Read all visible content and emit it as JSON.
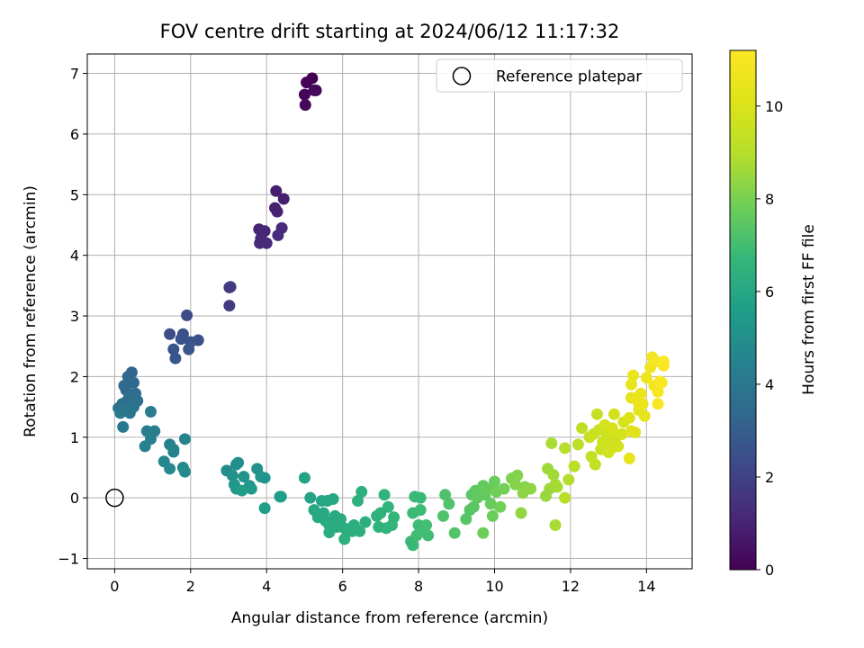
{
  "chart_data": {
    "type": "scatter",
    "title": "FOV centre drift starting at 2024/06/12 11:17:32",
    "xlabel": "Angular distance from reference (arcmin)",
    "ylabel": "Rotation from reference (arcmin)",
    "xlim": [
      -0.72,
      15.2
    ],
    "ylim": [
      -1.17,
      7.32
    ],
    "xticks": [
      0,
      2,
      4,
      6,
      8,
      10,
      12,
      14
    ],
    "yticks": [
      -1,
      0,
      1,
      2,
      3,
      4,
      5,
      6,
      7
    ],
    "grid": true,
    "legend": {
      "placement": "top-right",
      "entries": [
        "Reference platepar"
      ]
    },
    "reference": {
      "name": "Reference platepar",
      "x": 0,
      "y": 0
    },
    "colorbar": {
      "label": "Hours from first FF file",
      "colormap": "viridis",
      "range": [
        0,
        11.2
      ],
      "ticks": [
        0,
        2,
        4,
        6,
        8,
        10
      ]
    },
    "points": [
      [
        5.2,
        6.92,
        0.0
      ],
      [
        5.05,
        6.85,
        0.05
      ],
      [
        5.0,
        6.65,
        0.1
      ],
      [
        5.3,
        6.72,
        0.12
      ],
      [
        5.02,
        6.48,
        0.18
      ],
      [
        5.25,
        6.72,
        0.22
      ],
      [
        4.25,
        5.06,
        0.8
      ],
      [
        4.45,
        4.93,
        0.85
      ],
      [
        4.22,
        4.78,
        0.9
      ],
      [
        4.28,
        4.72,
        0.95
      ],
      [
        3.8,
        4.43,
        1.0
      ],
      [
        3.95,
        4.4,
        1.05
      ],
      [
        3.85,
        4.28,
        1.1
      ],
      [
        3.82,
        4.2,
        1.15
      ],
      [
        4.0,
        4.2,
        1.2
      ],
      [
        4.4,
        4.45,
        1.25
      ],
      [
        4.3,
        4.33,
        1.3
      ],
      [
        3.05,
        3.48,
        1.7
      ],
      [
        3.02,
        3.47,
        1.75
      ],
      [
        3.02,
        3.17,
        1.8
      ],
      [
        1.9,
        3.01,
        2.3
      ],
      [
        1.45,
        2.7,
        2.4
      ],
      [
        1.8,
        2.7,
        2.45
      ],
      [
        2.2,
        2.6,
        2.5
      ],
      [
        1.75,
        2.62,
        2.55
      ],
      [
        2.0,
        2.57,
        2.6
      ],
      [
        1.55,
        2.45,
        2.65
      ],
      [
        1.95,
        2.45,
        2.7
      ],
      [
        1.6,
        2.3,
        2.75
      ],
      [
        0.45,
        2.07,
        3.3
      ],
      [
        0.35,
        2.0,
        3.35
      ],
      [
        0.5,
        1.9,
        3.4
      ],
      [
        0.25,
        1.85,
        3.45
      ],
      [
        0.3,
        1.78,
        3.5
      ],
      [
        0.55,
        1.72,
        3.55
      ],
      [
        0.45,
        1.68,
        3.6
      ],
      [
        0.35,
        1.62,
        3.65
      ],
      [
        0.6,
        1.6,
        3.7
      ],
      [
        0.2,
        1.55,
        3.75
      ],
      [
        0.1,
        1.48,
        3.8
      ],
      [
        0.5,
        1.5,
        3.85
      ],
      [
        0.3,
        1.45,
        3.9
      ],
      [
        0.4,
        1.4,
        3.95
      ],
      [
        0.15,
        1.4,
        4.0
      ],
      [
        0.22,
        1.17,
        4.05
      ],
      [
        0.95,
        1.42,
        4.2
      ],
      [
        0.85,
        1.1,
        4.25
      ],
      [
        1.05,
        1.1,
        4.3
      ],
      [
        0.95,
        0.97,
        4.35
      ],
      [
        0.8,
        0.85,
        4.4
      ],
      [
        1.45,
        0.88,
        4.45
      ],
      [
        1.85,
        0.97,
        4.5
      ],
      [
        1.55,
        0.8,
        4.55
      ],
      [
        1.55,
        0.76,
        4.6
      ],
      [
        1.3,
        0.6,
        4.65
      ],
      [
        1.45,
        0.48,
        4.7
      ],
      [
        1.8,
        0.5,
        4.75
      ],
      [
        1.85,
        0.43,
        4.8
      ],
      [
        2.95,
        0.45,
        4.9
      ],
      [
        3.25,
        0.58,
        4.95
      ],
      [
        3.2,
        0.55,
        5.0
      ],
      [
        3.75,
        0.48,
        5.05
      ],
      [
        3.1,
        0.37,
        5.1
      ],
      [
        3.4,
        0.35,
        5.15
      ],
      [
        3.85,
        0.35,
        5.2
      ],
      [
        3.95,
        0.33,
        5.25
      ],
      [
        3.15,
        0.22,
        5.3
      ],
      [
        3.2,
        0.15,
        5.35
      ],
      [
        3.55,
        0.2,
        5.4
      ],
      [
        3.6,
        0.15,
        5.45
      ],
      [
        3.35,
        0.12,
        5.5
      ],
      [
        4.35,
        0.02,
        5.55
      ],
      [
        4.38,
        0.02,
        5.6
      ],
      [
        3.95,
        -0.17,
        5.65
      ],
      [
        5.0,
        0.33,
        5.8
      ],
      [
        5.15,
        0.0,
        5.85
      ],
      [
        5.45,
        -0.05,
        5.9
      ],
      [
        5.6,
        -0.05,
        5.95
      ],
      [
        5.75,
        -0.02,
        6.0
      ],
      [
        5.25,
        -0.2,
        6.02
      ],
      [
        5.5,
        -0.25,
        6.05
      ],
      [
        5.35,
        -0.32,
        6.08
      ],
      [
        5.55,
        -0.38,
        6.1
      ],
      [
        5.8,
        -0.3,
        6.12
      ],
      [
        5.95,
        -0.35,
        6.15
      ],
      [
        5.65,
        -0.45,
        6.18
      ],
      [
        5.85,
        -0.48,
        6.2
      ],
      [
        6.05,
        -0.5,
        6.22
      ],
      [
        5.65,
        -0.57,
        6.25
      ],
      [
        6.3,
        -0.45,
        6.28
      ],
      [
        6.25,
        -0.55,
        6.3
      ],
      [
        6.45,
        -0.55,
        6.32
      ],
      [
        6.6,
        -0.4,
        6.35
      ],
      [
        6.05,
        -0.68,
        6.38
      ],
      [
        6.5,
        0.1,
        6.4
      ],
      [
        6.4,
        -0.05,
        6.42
      ],
      [
        6.9,
        -0.3,
        6.45
      ],
      [
        7.0,
        -0.25,
        6.48
      ],
      [
        6.95,
        -0.48,
        6.5
      ],
      [
        7.15,
        -0.5,
        6.52
      ],
      [
        7.1,
        0.05,
        6.55
      ],
      [
        7.2,
        -0.15,
        6.58
      ],
      [
        7.35,
        -0.32,
        6.6
      ],
      [
        7.3,
        -0.45,
        6.62
      ],
      [
        7.8,
        -0.72,
        6.75
      ],
      [
        7.85,
        -0.78,
        6.78
      ],
      [
        7.9,
        0.02,
        6.8
      ],
      [
        8.05,
        0.0,
        6.82
      ],
      [
        7.85,
        -0.25,
        6.85
      ],
      [
        8.05,
        -0.2,
        6.88
      ],
      [
        8.0,
        -0.45,
        6.9
      ],
      [
        8.15,
        -0.5,
        6.92
      ],
      [
        8.25,
        -0.62,
        6.95
      ],
      [
        7.95,
        -0.62,
        6.98
      ],
      [
        8.2,
        -0.45,
        7.0
      ],
      [
        8.7,
        0.05,
        7.2
      ],
      [
        8.65,
        -0.3,
        7.25
      ],
      [
        8.8,
        -0.1,
        7.28
      ],
      [
        8.95,
        -0.58,
        7.3
      ],
      [
        9.35,
        -0.2,
        7.35
      ],
      [
        9.25,
        -0.35,
        7.38
      ],
      [
        9.45,
        -0.15,
        7.42
      ],
      [
        9.4,
        0.05,
        7.45
      ],
      [
        9.5,
        0.12,
        7.5
      ],
      [
        9.6,
        0.1,
        7.55
      ],
      [
        9.55,
        0.0,
        7.58
      ],
      [
        9.75,
        0.05,
        7.6
      ],
      [
        9.7,
        0.2,
        7.65
      ],
      [
        9.85,
        0.15,
        7.7
      ],
      [
        9.9,
        -0.1,
        7.72
      ],
      [
        10.0,
        0.27,
        7.75
      ],
      [
        9.95,
        -0.3,
        7.78
      ],
      [
        9.7,
        -0.58,
        7.8
      ],
      [
        10.05,
        0.1,
        7.85
      ],
      [
        10.15,
        -0.15,
        7.88
      ],
      [
        10.25,
        0.15,
        7.92
      ],
      [
        10.45,
        0.32,
        8.1
      ],
      [
        10.6,
        0.37,
        8.15
      ],
      [
        10.55,
        0.22,
        8.2
      ],
      [
        10.8,
        0.18,
        8.25
      ],
      [
        10.75,
        0.08,
        8.3
      ],
      [
        10.95,
        0.15,
        8.35
      ],
      [
        10.7,
        -0.25,
        8.4
      ],
      [
        11.35,
        0.03,
        8.5
      ],
      [
        11.45,
        0.15,
        8.55
      ],
      [
        11.4,
        0.48,
        8.6
      ],
      [
        11.55,
        0.38,
        8.65
      ],
      [
        11.6,
        0.22,
        8.7
      ],
      [
        11.65,
        0.18,
        8.72
      ],
      [
        11.5,
        0.9,
        8.75
      ],
      [
        11.6,
        -0.45,
        8.78
      ],
      [
        11.95,
        0.3,
        8.95
      ],
      [
        11.85,
        0.82,
        9.0
      ],
      [
        11.85,
        0.0,
        9.05
      ],
      [
        12.1,
        0.52,
        9.1
      ],
      [
        12.2,
        0.88,
        9.2
      ],
      [
        12.3,
        1.15,
        9.25
      ],
      [
        12.55,
        0.68,
        9.3
      ],
      [
        12.65,
        0.55,
        9.35
      ],
      [
        12.7,
        1.38,
        9.4
      ],
      [
        12.8,
        0.8,
        9.45
      ],
      [
        12.5,
        1.0,
        9.5
      ],
      [
        12.6,
        1.05,
        9.52
      ],
      [
        12.75,
        1.12,
        9.55
      ],
      [
        12.95,
        1.05,
        9.6
      ],
      [
        13.0,
        0.95,
        9.62
      ],
      [
        12.85,
        0.92,
        9.65
      ],
      [
        13.1,
        0.9,
        9.68
      ],
      [
        13.2,
        1.0,
        9.7
      ],
      [
        13.05,
        0.8,
        9.72
      ],
      [
        13.0,
        0.75,
        9.75
      ],
      [
        13.25,
        0.85,
        9.78
      ],
      [
        13.15,
        1.38,
        9.8
      ],
      [
        13.35,
        1.05,
        9.82
      ],
      [
        12.9,
        1.2,
        9.85
      ],
      [
        13.4,
        1.25,
        9.88
      ],
      [
        13.1,
        1.15,
        9.9
      ],
      [
        13.55,
        1.32,
        10.1
      ],
      [
        13.6,
        1.1,
        10.15
      ],
      [
        13.7,
        1.08,
        10.2
      ],
      [
        13.8,
        1.45,
        10.3
      ],
      [
        13.6,
        1.65,
        10.35
      ],
      [
        13.55,
        0.65,
        10.38
      ],
      [
        13.95,
        1.35,
        10.4
      ],
      [
        13.6,
        1.87,
        10.45
      ],
      [
        13.65,
        2.02,
        10.5
      ],
      [
        13.75,
        1.65,
        10.52
      ],
      [
        13.8,
        1.55,
        10.55
      ],
      [
        13.85,
        1.72,
        10.58
      ],
      [
        13.9,
        1.55,
        10.6
      ],
      [
        14.0,
        1.98,
        10.7
      ],
      [
        14.1,
        2.15,
        10.75
      ],
      [
        14.15,
        2.32,
        10.8
      ],
      [
        14.2,
        1.85,
        10.85
      ],
      [
        14.25,
        2.25,
        10.9
      ],
      [
        14.3,
        1.75,
        10.95
      ],
      [
        14.3,
        1.55,
        11.0
      ],
      [
        14.35,
        1.92,
        11.05
      ],
      [
        14.4,
        1.9,
        11.08
      ],
      [
        14.45,
        2.18,
        11.1
      ],
      [
        14.45,
        2.25,
        11.15
      ]
    ]
  }
}
